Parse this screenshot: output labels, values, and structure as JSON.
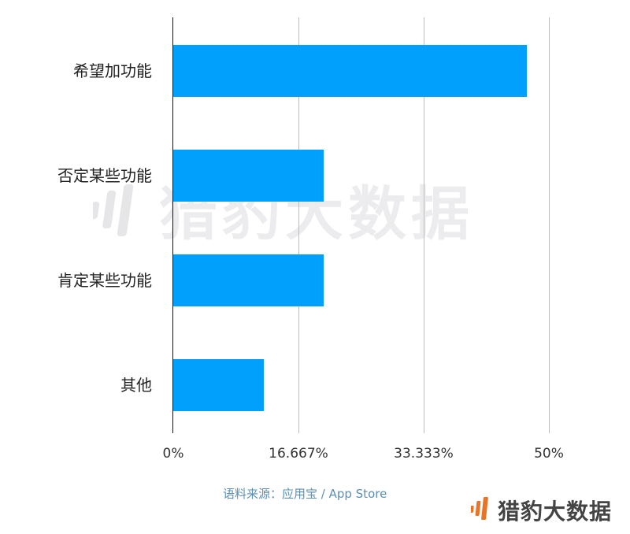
{
  "chart_data": {
    "type": "bar",
    "orientation": "horizontal",
    "title": "",
    "xlabel": "",
    "ylabel": "",
    "categories": [
      "希望加功能",
      "否定某些功能",
      "肯定某些功能",
      "其他"
    ],
    "values": [
      47,
      20,
      20,
      12
    ],
    "unit": "%",
    "xlim": [
      0,
      50
    ],
    "x_ticks": [
      "0%",
      "16.667%",
      "33.333%",
      "50%"
    ],
    "grid": "vertical",
    "bar_color": "#00a0fc",
    "legend": null
  },
  "source_note": "语料来源：应用宝 / App Store",
  "watermark": "猎豹大数据",
  "logo": {
    "text": "猎豹大数据",
    "icon_color": "#e8742a"
  }
}
